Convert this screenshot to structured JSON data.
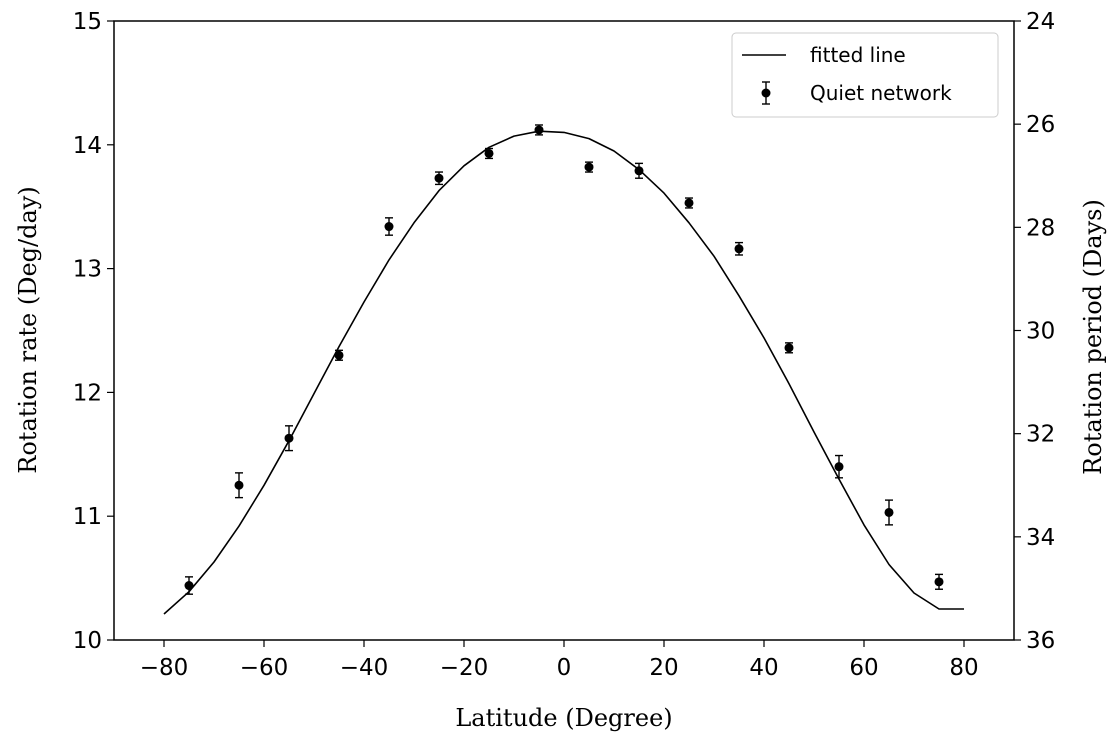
{
  "chart_data": {
    "type": "scatter",
    "xlabel": "Latitude (Degree)",
    "ylabel": "Rotation rate (Deg/day)",
    "y2label": "Rotation period (Days)",
    "xlim": [
      -90,
      90
    ],
    "ylim": [
      10,
      15
    ],
    "y2lim": [
      36,
      24
    ],
    "xticks": [
      -80,
      -60,
      -40,
      -20,
      0,
      20,
      40,
      60,
      80
    ],
    "yticks": [
      10,
      11,
      12,
      13,
      14,
      15
    ],
    "y2ticks": [
      24,
      26,
      28,
      30,
      32,
      34,
      36
    ],
    "grid": false,
    "legend_position": "top-right",
    "series": [
      {
        "name": "fitted line",
        "kind": "line",
        "color": "#000000",
        "x": [
          -80,
          -75,
          -70,
          -65,
          -60,
          -55,
          -50,
          -45,
          -40,
          -35,
          -30,
          -25,
          -20,
          -15,
          -10,
          -5,
          0,
          5,
          10,
          15,
          20,
          25,
          30,
          35,
          40,
          45,
          50,
          55,
          60,
          65,
          70,
          75,
          80
        ],
        "y": [
          10.21,
          10.39,
          10.63,
          10.92,
          11.25,
          11.61,
          11.99,
          12.37,
          12.73,
          13.07,
          13.37,
          13.63,
          13.83,
          13.98,
          14.07,
          14.11,
          14.1,
          14.05,
          13.95,
          13.8,
          13.61,
          13.37,
          13.1,
          12.78,
          12.44,
          12.07,
          11.68,
          11.3,
          10.93,
          10.61,
          10.38,
          10.25,
          10.25
        ]
      },
      {
        "name": "Quiet network",
        "kind": "errorbar",
        "color": "#000000",
        "x": [
          -75,
          -65,
          -55,
          -45,
          -35,
          -25,
          -15,
          -5,
          5,
          15,
          25,
          35,
          45,
          55,
          65,
          75
        ],
        "y": [
          10.44,
          11.25,
          11.63,
          12.3,
          13.34,
          13.73,
          13.93,
          14.12,
          13.82,
          13.79,
          13.53,
          13.16,
          12.36,
          11.4,
          11.03,
          10.47
        ],
        "yerr": [
          0.07,
          0.1,
          0.1,
          0.04,
          0.07,
          0.05,
          0.04,
          0.04,
          0.04,
          0.06,
          0.04,
          0.05,
          0.04,
          0.09,
          0.1,
          0.06
        ]
      }
    ]
  }
}
